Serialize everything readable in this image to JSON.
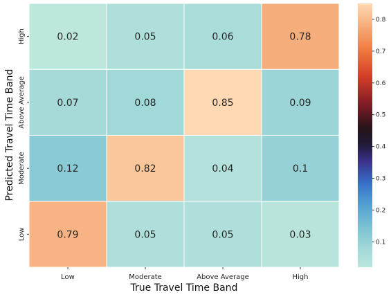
{
  "chart_data": {
    "type": "heatmap",
    "x_categories": [
      "Low",
      "Moderate",
      "Above Average",
      "High"
    ],
    "y_categories": [
      "High",
      "Above Average",
      "Moderate",
      "Low"
    ],
    "values": [
      [
        0.02,
        0.05,
        0.06,
        0.78
      ],
      [
        0.07,
        0.08,
        0.85,
        0.09
      ],
      [
        0.12,
        0.82,
        0.04,
        0.1
      ],
      [
        0.79,
        0.05,
        0.05,
        0.03
      ]
    ],
    "cell_labels": [
      [
        "0.02",
        "0.05",
        "0.06",
        "0.78"
      ],
      [
        "0.07",
        "0.08",
        "0.85",
        "0.09"
      ],
      [
        "0.12",
        "0.82",
        "0.04",
        "0.1"
      ],
      [
        "0.79",
        "0.05",
        "0.05",
        "0.03"
      ]
    ],
    "xlabel": "True Travel Time Band",
    "ylabel": "Predicted Travel Time Band",
    "colormap": "icefire",
    "vmin": 0.02,
    "vmax": 0.85,
    "colorbar_ticks": [
      0.1,
      0.2,
      0.3,
      0.4,
      0.5,
      0.6,
      0.7,
      0.8
    ],
    "colorbar_tick_labels": [
      "0.1",
      "0.2",
      "0.3",
      "0.4",
      "0.5",
      "0.6",
      "0.7",
      "0.8"
    ],
    "colorbar_placement": "right",
    "grid": false
  }
}
